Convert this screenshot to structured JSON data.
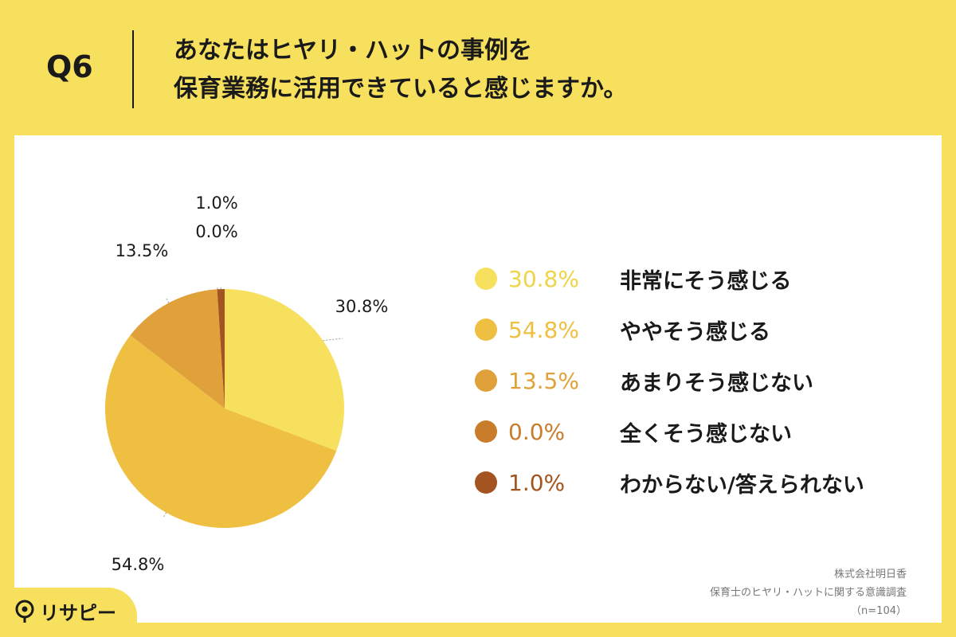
{
  "header": {
    "q_label": "Q6",
    "question_line1": "あなたはヒヤリ・ハットの事例を",
    "question_line2": "保育業務に活用できていると感じますか。"
  },
  "chart_data": {
    "type": "pie",
    "categories": [
      "非常にそう感じる",
      "ややそう感じる",
      "あまりそう感じない",
      "全くそう感じない",
      "わからない/答えられない"
    ],
    "values": [
      30.8,
      54.8,
      13.5,
      0.0,
      1.0
    ],
    "labels": [
      "30.8%",
      "54.8%",
      "13.5%",
      "0.0%",
      "1.0%"
    ],
    "colors": [
      "#f6e05e",
      "#efbf42",
      "#e0a13a",
      "#c97c2a",
      "#a35420"
    ],
    "legend_position": "right",
    "start": "top, clockwise"
  },
  "footer": {
    "line1": "株式会社明日香",
    "line2": "保育士のヒヤリ・ハットに関する意識調査",
    "line3": "（n=104）"
  },
  "brand": {
    "name": "リサピー",
    "icon": "pin-icon"
  }
}
